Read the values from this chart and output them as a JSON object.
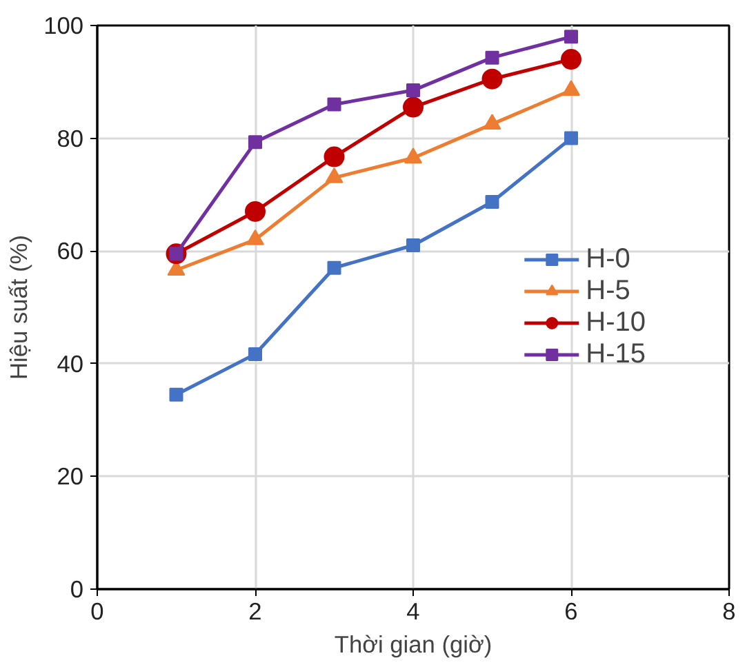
{
  "chart_data": {
    "type": "line",
    "xlabel": "Thời gian (giờ)",
    "ylabel": "Hiệu suất (%)",
    "xlim": [
      0,
      8
    ],
    "xticks": [
      0,
      2,
      4,
      6,
      8
    ],
    "ylim": [
      0,
      100
    ],
    "yticks": [
      0,
      20,
      40,
      60,
      80,
      100
    ],
    "grid": true,
    "legend": "right",
    "x": [
      1,
      2,
      3,
      4,
      5,
      6
    ],
    "series": [
      {
        "name": "H-0",
        "color": "#4472c4",
        "marker": "square",
        "values": [
          34.5,
          41.7,
          57,
          61,
          68.7,
          80
        ]
      },
      {
        "name": "H-5",
        "color": "#ed7d31",
        "marker": "triangle",
        "values": [
          56.6,
          62,
          73,
          76.5,
          82.5,
          88.5
        ]
      },
      {
        "name": "H-10",
        "color": "#c00000",
        "marker": "circle",
        "values": [
          59.5,
          67,
          76.7,
          85.5,
          90.5,
          94
        ]
      },
      {
        "name": "H-15",
        "color": "#7030a0",
        "marker": "square",
        "values": [
          59.5,
          79.3,
          86,
          88.5,
          94.3,
          98
        ]
      }
    ]
  }
}
